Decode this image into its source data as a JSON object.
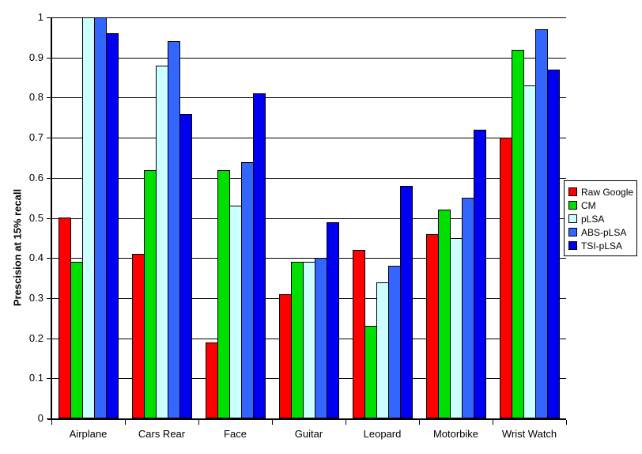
{
  "chart_data": {
    "type": "bar",
    "title": "",
    "xlabel": "",
    "ylabel": "Prescision at 15% recall",
    "ylim": [
      0,
      1
    ],
    "ytick_labels": [
      "1",
      "0.9",
      "0.8",
      "0.7",
      "0.6",
      "0.5",
      "0.4",
      "0.3",
      "0.2",
      "0.1",
      "0"
    ],
    "grid": true,
    "legend_position": "right",
    "categories": [
      "Airplane",
      "Cars Rear",
      "Face",
      "Guitar",
      "Leopard",
      "Motorbike",
      "Wrist Watch"
    ],
    "series": [
      {
        "name": "Raw Google",
        "color": "#FF0000",
        "values": [
          0.5,
          0.41,
          0.19,
          0.31,
          0.42,
          0.46,
          0.7
        ]
      },
      {
        "name": "CM",
        "color": "#00E000",
        "values": [
          0.39,
          0.62,
          0.62,
          0.39,
          0.23,
          0.52,
          0.92
        ]
      },
      {
        "name": "pLSA",
        "color": "#CCFFFF",
        "values": [
          1.0,
          0.88,
          0.53,
          0.39,
          0.34,
          0.45,
          0.83
        ]
      },
      {
        "name": "ABS-pLSA",
        "color": "#3366FF",
        "values": [
          1.0,
          0.94,
          0.64,
          0.4,
          0.38,
          0.55,
          0.97
        ]
      },
      {
        "name": "TSI-pLSA",
        "color": "#0000F0",
        "values": [
          0.96,
          0.76,
          0.81,
          0.49,
          0.58,
          0.72,
          0.87
        ]
      }
    ]
  }
}
